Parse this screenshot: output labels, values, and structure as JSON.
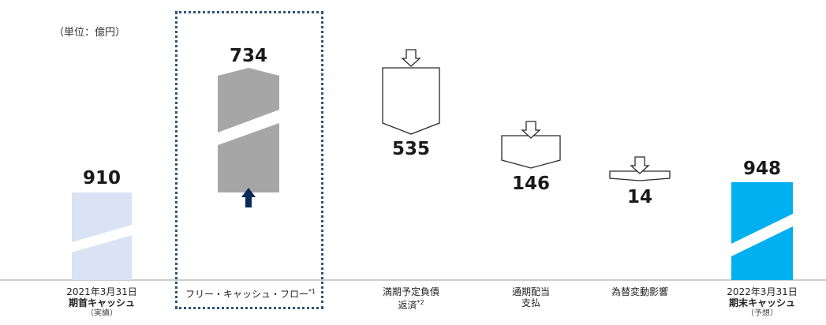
{
  "unit_label": "（単位：億円）",
  "chart_data": {
    "type": "bar",
    "subtype": "waterfall",
    "title": "",
    "unit": "（単位：億円）",
    "categories": [
      {
        "label": "2021年3月31日",
        "bold": "期首キャッシュ",
        "note": "（実績）"
      },
      {
        "label": "フリー・キャッシュ・フロー",
        "footnote": "*1"
      },
      {
        "label": "満期予定負債",
        "label2": "返済",
        "footnote": "*2"
      },
      {
        "label": "通期配当",
        "label2": "支払"
      },
      {
        "label": "為替変動影響"
      },
      {
        "label": "2022年3月31日",
        "bold": "期末キャッシュ",
        "note": "（予想）"
      }
    ],
    "values": [
      910,
      734,
      535,
      146,
      14,
      948
    ],
    "value_labels": [
      "910",
      "734",
      "535",
      "146",
      "14",
      "948"
    ],
    "direction": [
      "total",
      "increase",
      "decrease",
      "decrease",
      "decrease",
      "total"
    ],
    "colors": {
      "opening": "#d9e3f3",
      "fcf": "#a6a6a6",
      "closing": "#00b0f0",
      "arrow_up": "#0b2a5b",
      "outline": "#2b2b2b",
      "highlight_border": "#2f5575"
    },
    "legend": "none",
    "grid": false
  }
}
